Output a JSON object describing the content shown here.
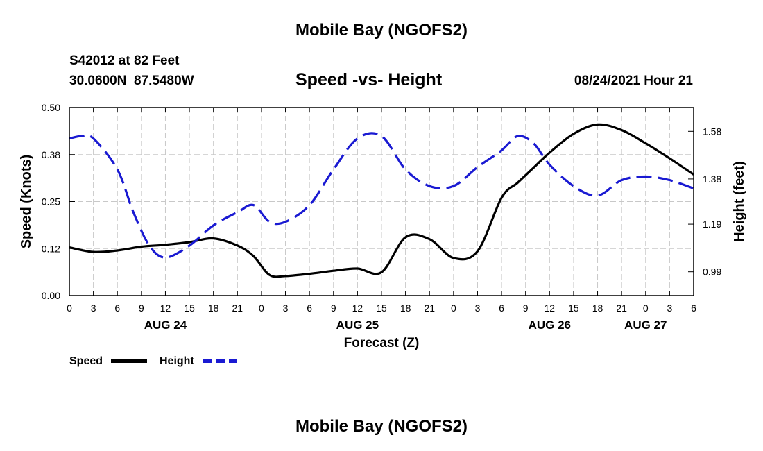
{
  "header": {
    "title": "Mobile Bay (NGOFS2)",
    "station": "S42012 at 82 Feet",
    "coords": "30.0600N  87.5480W",
    "subtitle": "Speed -vs- Height",
    "datetime": "08/24/2021 Hour 21"
  },
  "footer": {
    "title": "Mobile Bay (NGOFS2)"
  },
  "legend": {
    "speed_label": "Speed",
    "height_label": "Height",
    "speed_color": "#000000",
    "height_color": "#1a1ad2"
  },
  "chart_data": {
    "type": "line",
    "xlabel": "Forecast (Z)",
    "ylabel": "Speed (Knots)",
    "y2label": "Height (feet)",
    "x_unit": "hours from 00Z AUG 24",
    "xlim": [
      0,
      78
    ],
    "ylim": [
      0,
      0.5
    ],
    "y2lim": [
      0.89,
      1.68
    ],
    "x_tick_labels": [
      "0",
      "3",
      "6",
      "9",
      "12",
      "15",
      "18",
      "21",
      "0",
      "3",
      "6",
      "9",
      "12",
      "15",
      "18",
      "21",
      "0",
      "3",
      "6",
      "9",
      "12",
      "15",
      "18",
      "21",
      "0",
      "3",
      "6"
    ],
    "date_labels": [
      {
        "label": "AUG 24",
        "hour": 12
      },
      {
        "label": "AUG 25",
        "hour": 36
      },
      {
        "label": "AUG 26",
        "hour": 60
      },
      {
        "label": "AUG 27",
        "hour": 72
      }
    ],
    "y_ticks": [
      "0.00",
      "0.12",
      "0.25",
      "0.38",
      "0.50"
    ],
    "y_tick_values": [
      0,
      0.125,
      0.25,
      0.375,
      0.5
    ],
    "y2_ticks": [
      "0.99",
      "1.19",
      "1.38",
      "1.58"
    ],
    "y2_tick_values": [
      0.99,
      1.19,
      1.38,
      1.58
    ],
    "grid": true,
    "series": [
      {
        "name": "Speed",
        "axis": "left",
        "color": "#000000",
        "style": "solid",
        "x": [
          0,
          3,
          6,
          9,
          12,
          15,
          18,
          21,
          23,
          25,
          27,
          30,
          33,
          36,
          39,
          42,
          45,
          48,
          51,
          54,
          56,
          58,
          60,
          63,
          66,
          69,
          72,
          75,
          78
        ],
        "values": [
          0.128,
          0.116,
          0.12,
          0.13,
          0.135,
          0.142,
          0.152,
          0.133,
          0.105,
          0.055,
          0.052,
          0.058,
          0.066,
          0.072,
          0.062,
          0.155,
          0.15,
          0.1,
          0.118,
          0.26,
          0.3,
          0.34,
          0.38,
          0.43,
          0.455,
          0.44,
          0.405,
          0.365,
          0.322
        ]
      },
      {
        "name": "Height",
        "axis": "right",
        "color": "#1a1ad2",
        "style": "dashed",
        "x": [
          0,
          1.5,
          3,
          6,
          8,
          10,
          12,
          15,
          18,
          21,
          23,
          25,
          27,
          30,
          33,
          36,
          39,
          42,
          45,
          48,
          51,
          54,
          56,
          58,
          60,
          63,
          66,
          69,
          72,
          75,
          78
        ],
        "values": [
          1.55,
          1.56,
          1.55,
          1.42,
          1.24,
          1.1,
          1.05,
          1.1,
          1.185,
          1.24,
          1.27,
          1.2,
          1.2,
          1.27,
          1.42,
          1.55,
          1.56,
          1.42,
          1.35,
          1.35,
          1.43,
          1.5,
          1.56,
          1.53,
          1.44,
          1.35,
          1.31,
          1.375,
          1.39,
          1.375,
          1.34
        ]
      }
    ]
  }
}
